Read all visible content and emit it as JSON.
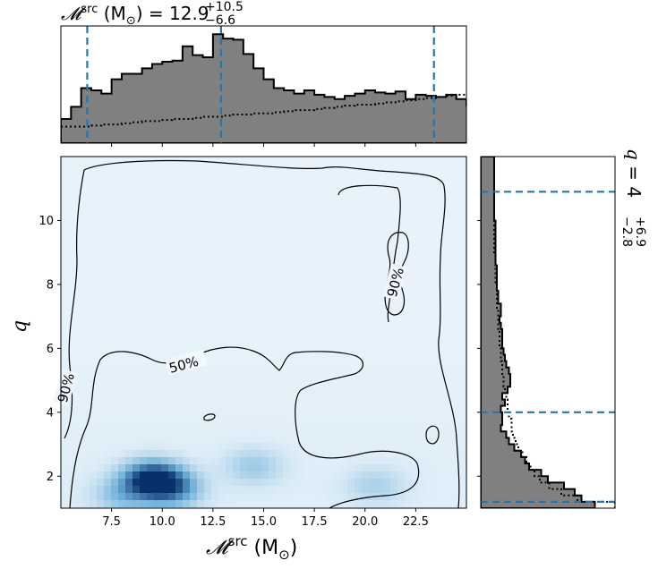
{
  "chart_data": {
    "type": "corner",
    "main": {
      "type": "heatmap",
      "x_range": [
        5,
        25
      ],
      "y_range": [
        1,
        12
      ],
      "x_ticks": [
        "7.5",
        "10.0",
        "12.5",
        "15.0",
        "17.5",
        "20.0",
        "22.5"
      ],
      "y_ticks": [
        "2",
        "4",
        "6",
        "8",
        "10"
      ],
      "xlabel_main": "𝓜",
      "xlabel_sup": "src",
      "xlabel_unit": "(M",
      "xlabel_unit_sub": "⊙",
      "xlabel_close": ")",
      "ylabel": "q",
      "density_peaks": [
        {
          "x": 9.5,
          "y": 1.9,
          "weight": 1.0
        },
        {
          "x": 10.5,
          "y": 1.6,
          "weight": 0.55
        },
        {
          "x": 14.5,
          "y": 2.3,
          "weight": 0.25
        },
        {
          "x": 20.5,
          "y": 1.7,
          "weight": 0.2
        },
        {
          "x": 8.0,
          "y": 1.4,
          "weight": 0.3
        }
      ],
      "contours": [
        {
          "label": "50%"
        },
        {
          "label": "90%"
        },
        {
          "label": "90%"
        }
      ]
    },
    "top": {
      "type": "histogram",
      "title_main": "𝓜",
      "title_sup": "src",
      "title_unit": "(M",
      "title_unit_sub": "⊙",
      "title_eq": ") = 12.9",
      "title_plus": "+10.5",
      "title_minus": "−6.6",
      "bin_start": 5.0,
      "bin_width": 0.5,
      "posterior": [
        0.22,
        0.33,
        0.5,
        0.48,
        0.45,
        0.58,
        0.63,
        0.63,
        0.68,
        0.72,
        0.74,
        0.75,
        0.88,
        0.8,
        0.78,
        0.99,
        0.95,
        0.94,
        0.81,
        0.68,
        0.58,
        0.5,
        0.48,
        0.45,
        0.48,
        0.44,
        0.42,
        0.4,
        0.43,
        0.45,
        0.48,
        0.46,
        0.45,
        0.47,
        0.4,
        0.44,
        0.43,
        0.42,
        0.44,
        0.4,
        0.34,
        0.36,
        0.38,
        0.33,
        0.35,
        0.35,
        0.35,
        0.36,
        0.32,
        0.3,
        0.31,
        0.3,
        0.25,
        0.27,
        0.28,
        0.32,
        0.3,
        0.3,
        0.32,
        0.3,
        0.35,
        0.33,
        0.28,
        0.3,
        0.27,
        0.27,
        0.26,
        0.27,
        0.26,
        0.26,
        0.27,
        0.25,
        0.25,
        0.26,
        0.28,
        0.31,
        0.35,
        0.27,
        0.21,
        0.2
      ],
      "prior": [
        0.15,
        0.15,
        0.15,
        0.16,
        0.17,
        0.17,
        0.18,
        0.19,
        0.2,
        0.2,
        0.21,
        0.22,
        0.22,
        0.23,
        0.24,
        0.24,
        0.25,
        0.26,
        0.26,
        0.27,
        0.27,
        0.28,
        0.29,
        0.3,
        0.3,
        0.31,
        0.32,
        0.33,
        0.34,
        0.35,
        0.35,
        0.36,
        0.37,
        0.38,
        0.39,
        0.4,
        0.41,
        0.42,
        0.43,
        0.44,
        0.45,
        0.46,
        0.47,
        0.48,
        0.49,
        0.5,
        0.51,
        0.52,
        0.53,
        0.54,
        0.55,
        0.56,
        0.57,
        0.58,
        0.59,
        0.6,
        0.61,
        0.62,
        0.63,
        0.64,
        0.65,
        0.65,
        0.66,
        0.67,
        0.67,
        0.68,
        0.69,
        0.69,
        0.7,
        0.7,
        0.71,
        0.71,
        0.72,
        0.72,
        0.72,
        0.73,
        0.73,
        0.73,
        0.73,
        0.73
      ],
      "quantiles": [
        6.3,
        12.9,
        23.4
      ],
      "ymax": 1.0
    },
    "right": {
      "type": "histogram",
      "title_main": "q",
      "title_eq": " = 4",
      "title_plus": "+6.9",
      "title_minus": "−2.8",
      "bin_start": 1.0,
      "bin_width": 0.2,
      "posterior": [
        0.85,
        0.75,
        0.7,
        0.62,
        0.5,
        0.45,
        0.36,
        0.33,
        0.3,
        0.25,
        0.21,
        0.19,
        0.15,
        0.16,
        0.16,
        0.15,
        0.18,
        0.16,
        0.2,
        0.22,
        0.22,
        0.21,
        0.19,
        0.18,
        0.17,
        0.16,
        0.16,
        0.16,
        0.15,
        0.14,
        0.15,
        0.15,
        0.13,
        0.13,
        0.12,
        0.12,
        0.12,
        0.12,
        0.11,
        0.11,
        0.11,
        0.11,
        0.11,
        0.11,
        0.11,
        0.1,
        0.1,
        0.1,
        0.1,
        0.1,
        0.1,
        0.1,
        0.1,
        0.1,
        0.1
      ],
      "prior": [
        1.0,
        0.72,
        0.6,
        0.51,
        0.44,
        0.4,
        0.37,
        0.34,
        0.31,
        0.28,
        0.26,
        0.24,
        0.23,
        0.23,
        0.21,
        0.2,
        0.2,
        0.19,
        0.18,
        0.17,
        0.17,
        0.16,
        0.16,
        0.15,
        0.15,
        0.14,
        0.14,
        0.14,
        0.13,
        0.13,
        0.13,
        0.12,
        0.12,
        0.12,
        0.12,
        0.11,
        0.11,
        0.11,
        0.11,
        0.11,
        0.1,
        0.1,
        0.1,
        0.1,
        0.1,
        0.1,
        0.1,
        0.1,
        0.1,
        0.1,
        0.1,
        0.1,
        0.1,
        0.1,
        0.1
      ],
      "quantiles": [
        1.2,
        4.0,
        10.9
      ],
      "xmax": 1.0
    },
    "colors": {
      "hist_fill": "#808080",
      "quantile_line": "#1f77b4",
      "cmap_low": "#f7fbff",
      "cmap_high": "#08306b"
    }
  }
}
